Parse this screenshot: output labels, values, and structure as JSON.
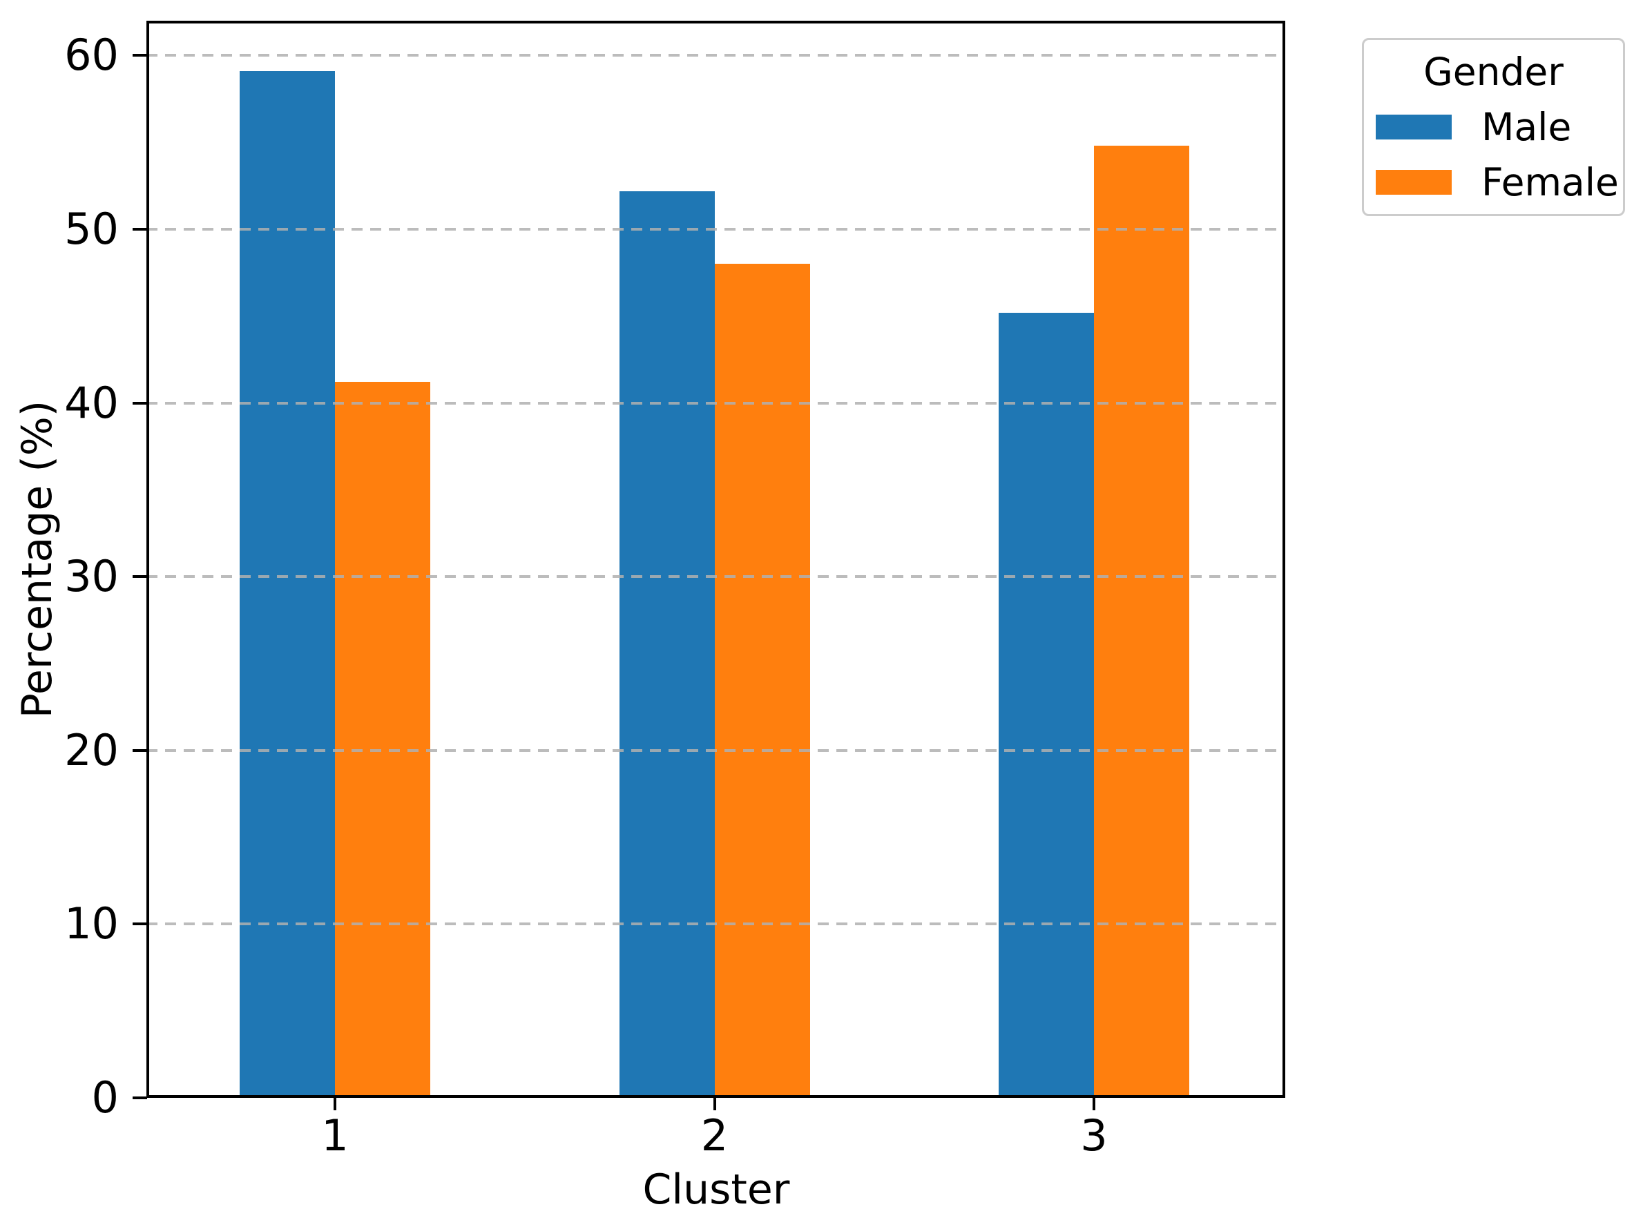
{
  "chart_data": {
    "type": "bar",
    "title": "",
    "xlabel": "Cluster",
    "ylabel": "Percentage (%)",
    "categories": [
      "1",
      "2",
      "3"
    ],
    "series": [
      {
        "name": "Male",
        "color": "#1f77b4",
        "values": [
          59.1,
          52.2,
          45.2
        ]
      },
      {
        "name": "Female",
        "color": "#ff7f0e",
        "values": [
          41.2,
          48.0,
          54.8
        ]
      }
    ],
    "ylim": [
      0,
      62
    ],
    "yticks": [
      0,
      10,
      20,
      30,
      40,
      50,
      60
    ],
    "legend_title": "Gender",
    "legend_position": "upper right, outside axes",
    "grid": "horizontal dashed gray, drawn above bars",
    "colors": {
      "male": "#1f77b4",
      "female": "#ff7f0e",
      "grid": "#b0b0b0",
      "spine": "#000000",
      "legend_border": "#cccccc",
      "background": "#ffffff"
    }
  }
}
